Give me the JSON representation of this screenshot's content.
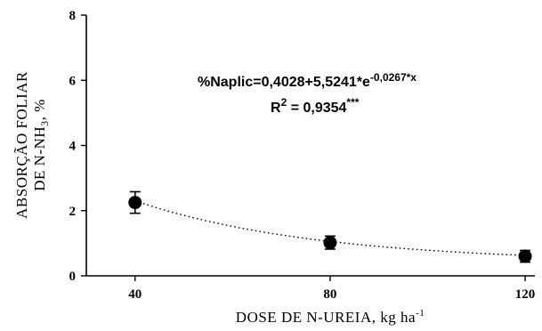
{
  "chart_data": {
    "type": "scatter",
    "xlabel": {
      "text": "DOSE DE N-UREIA, kg ha",
      "sup": "-1"
    },
    "ylabel": {
      "line1": "ABSORÇÃO FOLIAR",
      "line2_main": "DE N-NH",
      "line2_sub": "3",
      "line2_end": ", %"
    },
    "xlim": [
      30,
      122
    ],
    "ylim": [
      0,
      8
    ],
    "xticks": [
      40,
      80,
      120
    ],
    "xtick_labels": [
      "40",
      "80",
      "120"
    ],
    "yticks": [
      0,
      2,
      4,
      6,
      8
    ],
    "ytick_labels": [
      "0",
      "2",
      "4",
      "6",
      "8"
    ],
    "series": [
      {
        "x": [
          40,
          80,
          120
        ],
        "y": [
          2.25,
          1.02,
          0.6
        ],
        "error": [
          0.33,
          0.2,
          0.18
        ],
        "marker": "circle",
        "color": "#000000"
      }
    ],
    "fit": {
      "a": 0.4028,
      "b": 5.5241,
      "c": -0.0267,
      "x_range": [
        40,
        120
      ],
      "line_style": "dotted"
    },
    "annotation": {
      "equation_main": "%Naplic=0,4028+5,5241*e",
      "equation_sup": "-0,0267*x",
      "r2_prefix": "R",
      "r2_sup": "2",
      "r2_value": " = 0,9354",
      "r2_sig": "***"
    }
  }
}
